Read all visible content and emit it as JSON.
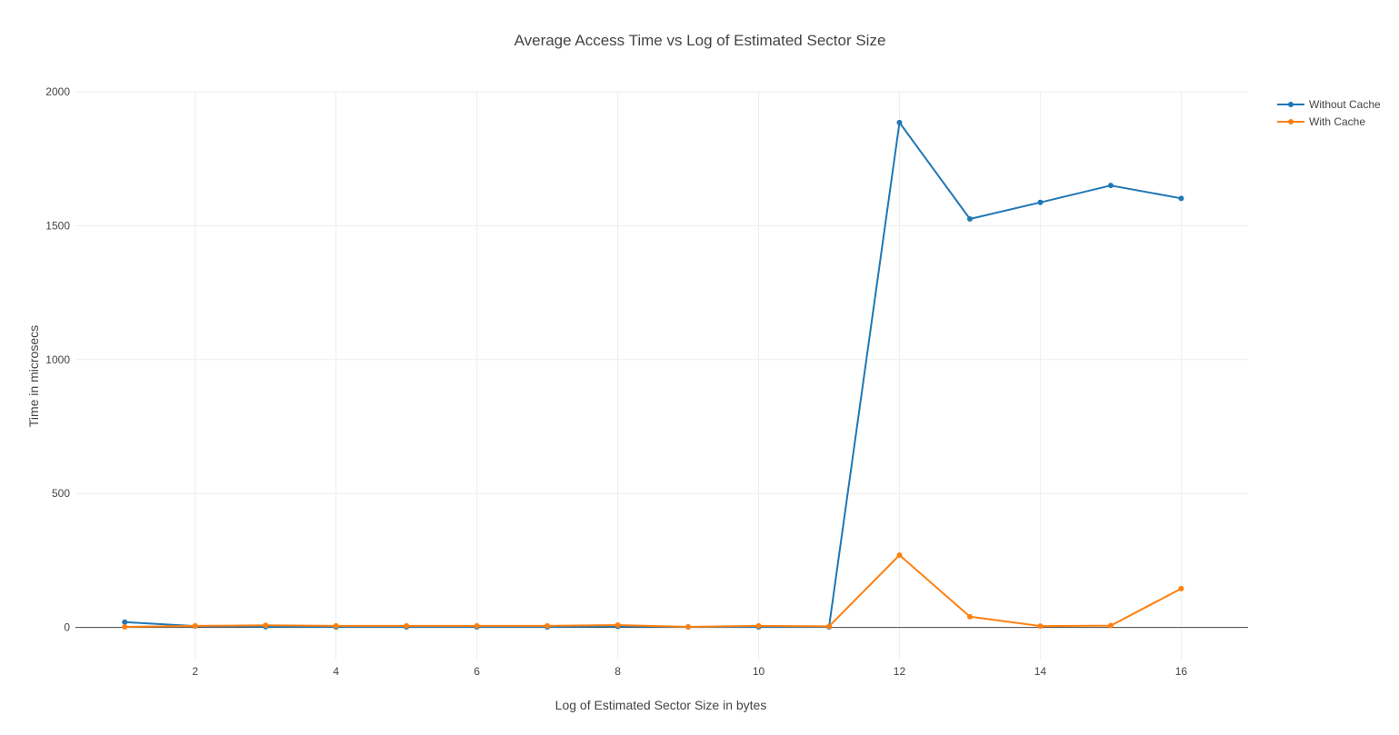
{
  "chart_data": {
    "type": "line",
    "title": "Average Access Time vs Log of Estimated Sector Size",
    "xlabel": "Log of Estimated Sector Size in bytes",
    "ylabel": "Time in microsecs",
    "x": [
      1,
      2,
      3,
      4,
      5,
      6,
      7,
      8,
      9,
      10,
      11,
      12,
      13,
      14,
      15,
      16
    ],
    "xlim": [
      0.3,
      16.95
    ],
    "ylim": [
      -120,
      2000
    ],
    "x_ticks": [
      2,
      4,
      6,
      8,
      10,
      12,
      14,
      16
    ],
    "y_ticks": [
      0,
      500,
      1000,
      1500,
      2000
    ],
    "grid": true,
    "legend_position": "top-right",
    "series": [
      {
        "name": "Without Cache",
        "color": "#1f77b4",
        "values": [
          20,
          5,
          3,
          2,
          2,
          2,
          2,
          4,
          2,
          2,
          2,
          1885,
          1525,
          1587,
          1650,
          1602
        ]
      },
      {
        "name": "With Cache",
        "color": "#ff7f0e",
        "values": [
          2,
          6,
          8,
          6,
          6,
          6,
          6,
          9,
          2,
          6,
          4,
          270,
          40,
          5,
          7,
          145
        ]
      }
    ]
  }
}
